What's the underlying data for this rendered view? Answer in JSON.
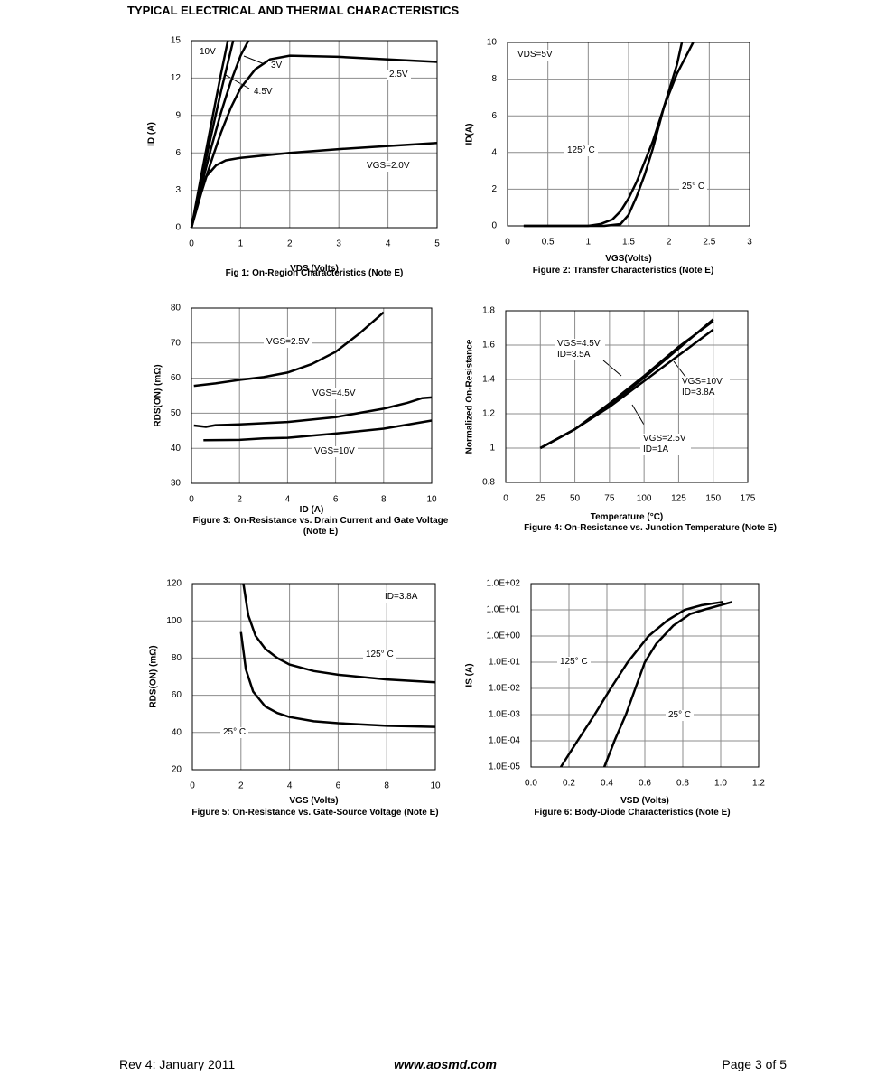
{
  "header": {
    "title": "TYPICAL ELECTRICAL AND THERMAL CHARACTERISTICS"
  },
  "footer": {
    "revision": "Rev 4: January 2011",
    "website": "www.aosmd.com",
    "page": "Page 3 of 5"
  },
  "chart_data": [
    {
      "type": "line",
      "title": "Fig 1: On-Region Characteristics (Note E)",
      "xlabel": "VDS (Volts)",
      "ylabel": "ID (A)",
      "xlim": [
        0,
        5
      ],
      "xticks": [
        0,
        1,
        2,
        3,
        4,
        5
      ],
      "ylim": [
        0,
        15
      ],
      "yticks": [
        0,
        3,
        6,
        9,
        12,
        15
      ],
      "grid": true,
      "annotations": [],
      "series": [
        {
          "name": "10V",
          "color": "#000000",
          "x": [
            0,
            0.2,
            0.4,
            0.6,
            0.74
          ],
          "values": [
            0,
            4.2,
            8.3,
            12.3,
            15
          ]
        },
        {
          "name": "4.5V",
          "color": "#000000",
          "x": [
            0,
            0.2,
            0.4,
            0.6,
            0.85
          ],
          "values": [
            0,
            3.8,
            7.4,
            10.9,
            15
          ]
        },
        {
          "name": "3V",
          "color": "#000000",
          "x": [
            0,
            0.2,
            0.4,
            0.6,
            0.8,
            1.0,
            1.16
          ],
          "values": [
            0,
            3.3,
            6.4,
            9.2,
            11.7,
            13.8,
            15
          ]
        },
        {
          "name": "2.5V",
          "color": "#000000",
          "x": [
            0,
            0.2,
            0.4,
            0.6,
            0.8,
            1.0,
            1.3,
            1.6,
            2,
            3,
            4,
            5
          ],
          "values": [
            0,
            2.8,
            5.3,
            7.6,
            9.6,
            11.2,
            12.7,
            13.5,
            13.8,
            13.7,
            13.5,
            13.3
          ]
        },
        {
          "name": "VGS=2.0V",
          "color": "#000000",
          "x": [
            0,
            0.1,
            0.2,
            0.3,
            0.5,
            0.7,
            1,
            2,
            3,
            4,
            5
          ],
          "values": [
            0,
            1.6,
            3,
            4.1,
            5,
            5.4,
            5.6,
            6,
            6.3,
            6.55,
            6.8
          ]
        }
      ]
    },
    {
      "type": "line",
      "title": "Figure 2: Transfer Characteristics (Note E)",
      "xlabel": "VGS(Volts)",
      "ylabel": "ID(A)",
      "xlim": [
        0,
        3
      ],
      "xticks": [
        0,
        0.5,
        1,
        1.5,
        2,
        2.5,
        3
      ],
      "ylim": [
        0,
        10
      ],
      "yticks": [
        0,
        2,
        4,
        6,
        8,
        10
      ],
      "grid": true,
      "annotations": [
        "VDS=5V"
      ],
      "series": [
        {
          "name": "125° C",
          "color": "#000000",
          "x": [
            0.2,
            1.0,
            1.15,
            1.3,
            1.4,
            1.5,
            1.6,
            1.8,
            1.94,
            2.1,
            2.16
          ],
          "values": [
            0,
            0,
            0.1,
            0.35,
            0.8,
            1.5,
            2.4,
            4.6,
            6.5,
            8.8,
            10
          ]
        },
        {
          "name": "25° C",
          "color": "#000000",
          "x": [
            0.2,
            1.2,
            1.4,
            1.5,
            1.6,
            1.7,
            1.8,
            1.94,
            2.1,
            2.3
          ],
          "values": [
            0,
            0,
            0.1,
            0.6,
            1.6,
            2.8,
            4.2,
            6.5,
            8.3,
            10
          ]
        }
      ]
    },
    {
      "type": "line",
      "title": "Figure 3: On-Resistance vs. Drain Current and Gate Voltage (Note E)",
      "xlabel": "ID (A)",
      "ylabel": "RDS(ON) (mΩ)",
      "xlim": [
        0,
        10
      ],
      "xticks": [
        0,
        2,
        4,
        6,
        8,
        10
      ],
      "ylim": [
        30,
        80
      ],
      "yticks": [
        30,
        40,
        50,
        60,
        70,
        80
      ],
      "grid": true,
      "annotations": [],
      "series": [
        {
          "name": "VGS=2.5V",
          "color": "#000000",
          "x": [
            0.1,
            1,
            2,
            3,
            4,
            5,
            6,
            7,
            8
          ],
          "values": [
            57.8,
            58.5,
            59.5,
            60.3,
            61.6,
            64,
            67.5,
            72.8,
            78.8
          ]
        },
        {
          "name": "VGS=4.5V",
          "color": "#000000",
          "x": [
            0.1,
            0.6,
            1,
            2,
            4,
            6,
            8,
            9,
            9.6,
            10
          ],
          "values": [
            46.5,
            46.1,
            46.6,
            46.8,
            47.5,
            48.9,
            51.3,
            53,
            54.3,
            54.5
          ]
        },
        {
          "name": "VGS=10V",
          "color": "#000000",
          "x": [
            0.5,
            2,
            3,
            4,
            6,
            8,
            10
          ],
          "values": [
            42.3,
            42.4,
            42.8,
            43,
            44.2,
            45.6,
            47.9
          ]
        }
      ]
    },
    {
      "type": "line",
      "title": "Figure 4: On-Resistance vs. Junction Temperature (Note E)",
      "xlabel": "Temperature (°C)",
      "ylabel": "Normalized On-Resistance",
      "xlim": [
        0,
        175
      ],
      "xticks": [
        0,
        25,
        50,
        75,
        100,
        125,
        150,
        175
      ],
      "ylim": [
        0.8,
        1.8
      ],
      "yticks": [
        0.8,
        1,
        1.2,
        1.4,
        1.6,
        1.8
      ],
      "grid": true,
      "annotations": [],
      "series": [
        {
          "name": "VGS=4.5V ID=3.5A",
          "color": "#000000",
          "x": [
            25,
            50,
            75,
            100,
            125,
            150
          ],
          "values": [
            1,
            1.11,
            1.25,
            1.41,
            1.58,
            1.75
          ]
        },
        {
          "name": "VGS=10V ID=3.8A",
          "color": "#000000",
          "x": [
            25,
            50,
            75,
            100,
            125,
            150
          ],
          "values": [
            1,
            1.11,
            1.24,
            1.39,
            1.54,
            1.69
          ]
        },
        {
          "name": "VGS=2.5V ID=1A",
          "color": "#000000",
          "x": [
            25,
            50,
            75,
            100,
            125,
            150
          ],
          "values": [
            1,
            1.11,
            1.26,
            1.42,
            1.59,
            1.74
          ]
        }
      ]
    },
    {
      "type": "line",
      "title": "Figure 5: On-Resistance vs. Gate-Source Voltage (Note E)",
      "xlabel": "VGS (Volts)",
      "ylabel": "RDS(ON) (mΩ)",
      "xlim": [
        0,
        10
      ],
      "xticks": [
        0,
        2,
        4,
        6,
        8,
        10
      ],
      "ylim": [
        20,
        120
      ],
      "yticks": [
        20,
        40,
        60,
        80,
        100,
        120
      ],
      "grid": true,
      "annotations": [
        "ID=3.8A"
      ],
      "series": [
        {
          "name": "125° C",
          "color": "#000000",
          "x": [
            2.1,
            2.3,
            2.6,
            3,
            3.5,
            4,
            5,
            6,
            8,
            10
          ],
          "values": [
            120,
            103,
            92,
            85,
            80,
            76.5,
            73,
            71,
            68.5,
            67
          ]
        },
        {
          "name": "25° C",
          "color": "#000000",
          "x": [
            2,
            2.2,
            2.5,
            3,
            3.5,
            4,
            5,
            6,
            8,
            10
          ],
          "values": [
            94,
            74,
            62,
            54,
            50.5,
            48.3,
            46,
            45,
            43.6,
            43
          ]
        }
      ]
    },
    {
      "type": "line",
      "title": "Figure 6: Body-Diode Characteristics (Note E)",
      "xlabel": "VSD (Volts)",
      "ylabel": "IS (A)",
      "log_y": true,
      "xlim": [
        0,
        1.2
      ],
      "xticks": [
        {
          "value": 0,
          "label": "0.0"
        },
        0.2,
        0.4,
        0.6,
        0.8,
        {
          "value": 1,
          "label": "1.0"
        },
        1.2
      ],
      "ylim": [
        1e-05,
        100
      ],
      "yticks": [
        {
          "value": 1e-05,
          "label": "1.0E-05"
        },
        {
          "value": 0.0001,
          "label": "1.0E-04"
        },
        {
          "value": 0.001,
          "label": "1.0E-03"
        },
        {
          "value": 0.01,
          "label": "1.0E-02"
        },
        {
          "value": 0.1,
          "label": "1.0E-01"
        },
        {
          "value": 1,
          "label": "1.0E+00"
        },
        {
          "value": 10,
          "label": "1.0E+01"
        },
        {
          "value": 100,
          "label": "1.0E+02"
        }
      ],
      "grid": true,
      "annotations": [],
      "series": [
        {
          "name": "125° C",
          "color": "#000000",
          "x": [
            0.157,
            0.245,
            0.335,
            0.42,
            0.51,
            0.62,
            0.72,
            0.81,
            0.9,
            1.01
          ],
          "values": [
            1e-05,
            0.0001,
            0.001,
            0.01,
            0.1,
            1,
            4,
            10,
            15,
            20
          ]
        },
        {
          "name": "25° C",
          "color": "#000000",
          "x": [
            0.386,
            0.44,
            0.5,
            0.55,
            0.6,
            0.66,
            0.75,
            0.84,
            0.91,
            1.06
          ],
          "values": [
            1e-05,
            0.0001,
            0.001,
            0.01,
            0.1,
            0.5,
            2.5,
            7,
            10,
            20
          ]
        }
      ]
    }
  ]
}
